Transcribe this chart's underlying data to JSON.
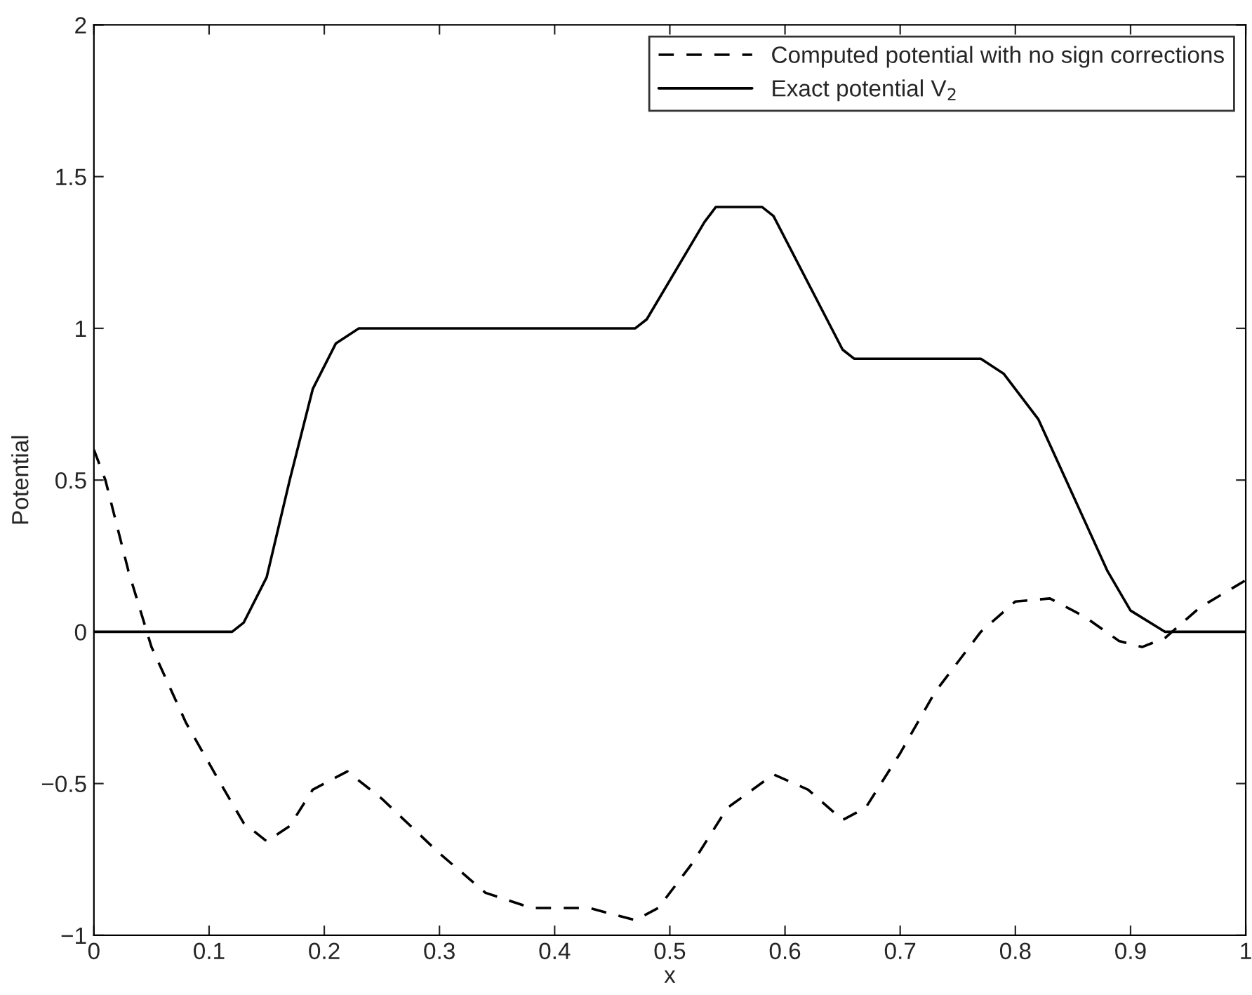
{
  "chart_data": {
    "type": "line",
    "xlabel": "x",
    "ylabel": "Potential",
    "xlim": [
      0,
      1
    ],
    "ylim": [
      -1,
      2
    ],
    "xticks": [
      0,
      0.1,
      0.2,
      0.3,
      0.4,
      0.5,
      0.6,
      0.7,
      0.8,
      0.9,
      1
    ],
    "yticks": [
      -1,
      -0.5,
      0,
      0.5,
      1,
      1.5,
      2
    ],
    "grid": false,
    "legend": "top right",
    "series": [
      {
        "name": "Computed potential with no sign corrections",
        "color": "#000000",
        "line_style": "dashed",
        "x": [
          0,
          0.01,
          0.03,
          0.05,
          0.08,
          0.11,
          0.13,
          0.15,
          0.17,
          0.19,
          0.22,
          0.25,
          0.3,
          0.34,
          0.38,
          0.43,
          0.47,
          0.49,
          0.52,
          0.55,
          0.59,
          0.62,
          0.65,
          0.67,
          0.7,
          0.73,
          0.77,
          0.8,
          0.83,
          0.86,
          0.89,
          0.91,
          0.93,
          0.96,
          1.0
        ],
        "values": [
          0.6,
          0.5,
          0.2,
          -0.05,
          -0.3,
          -0.5,
          -0.63,
          -0.69,
          -0.64,
          -0.52,
          -0.46,
          -0.55,
          -0.73,
          -0.86,
          -0.91,
          -0.91,
          -0.95,
          -0.91,
          -0.76,
          -0.58,
          -0.47,
          -0.52,
          -0.62,
          -0.58,
          -0.4,
          -0.2,
          0.0,
          0.1,
          0.11,
          0.05,
          -0.03,
          -0.05,
          -0.02,
          0.08,
          0.17
        ]
      },
      {
        "name": "Exact potential V$_{2}$",
        "color": "#000000",
        "line_style": "solid",
        "x": [
          0,
          0.12,
          0.13,
          0.15,
          0.17,
          0.19,
          0.21,
          0.23,
          0.47,
          0.48,
          0.53,
          0.54,
          0.58,
          0.59,
          0.65,
          0.66,
          0.77,
          0.79,
          0.82,
          0.85,
          0.88,
          0.9,
          0.93,
          1.0
        ],
        "values": [
          0,
          0,
          0.03,
          0.18,
          0.5,
          0.8,
          0.95,
          1.0,
          1.0,
          1.03,
          1.35,
          1.4,
          1.4,
          1.37,
          0.93,
          0.9,
          0.9,
          0.85,
          0.7,
          0.45,
          0.2,
          0.07,
          0,
          0
        ]
      }
    ]
  }
}
